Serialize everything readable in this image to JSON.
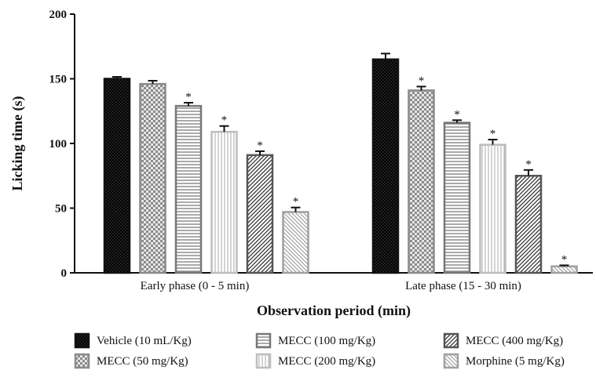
{
  "chart_data": {
    "type": "bar",
    "xlabel": "Observation period (min)",
    "ylabel": "Licking time (s)",
    "ylim": [
      0,
      200
    ],
    "yticks": [
      "0",
      "50",
      "100",
      "150",
      "200"
    ],
    "categories": [
      "Early phase (0 - 5 min)",
      "Late phase (15 - 30 min)"
    ],
    "series": [
      {
        "name": "Vehicle (10 mL/Kg)",
        "values": [
          150,
          165
        ],
        "errors": [
          1.5,
          4.5
        ],
        "significant": [
          false,
          false
        ],
        "pattern": "crosshatch-dark",
        "stroke": "#111111"
      },
      {
        "name": "MECC (50 mg/Kg)",
        "values": [
          146,
          141
        ],
        "errors": [
          2.5,
          3.0
        ],
        "significant": [
          false,
          true
        ],
        "pattern": "checker",
        "stroke": "#8a8a8a"
      },
      {
        "name": "MECC (100 mg/Kg)",
        "values": [
          129,
          116
        ],
        "errors": [
          2.5,
          2.0
        ],
        "significant": [
          true,
          true
        ],
        "pattern": "horizontal",
        "stroke": "#777777"
      },
      {
        "name": "MECC (200 mg/Kg)",
        "values": [
          109,
          99
        ],
        "errors": [
          4.5,
          4.0
        ],
        "significant": [
          true,
          true
        ],
        "pattern": "vertical",
        "stroke": "#bdbdbd"
      },
      {
        "name": "MECC (400 mg/Kg)",
        "values": [
          91,
          75
        ],
        "errors": [
          3.0,
          4.5
        ],
        "significant": [
          true,
          true
        ],
        "pattern": "diagonal-dark",
        "stroke": "#555555"
      },
      {
        "name": "Morphine (5 mg/Kg)",
        "values": [
          47,
          5
        ],
        "errors": [
          3.5,
          0.8
        ],
        "significant": [
          true,
          true
        ],
        "pattern": "diagonal-light",
        "stroke": "#a0a0a0"
      }
    ],
    "significance_marker": "*",
    "legend_position": "bottom"
  }
}
